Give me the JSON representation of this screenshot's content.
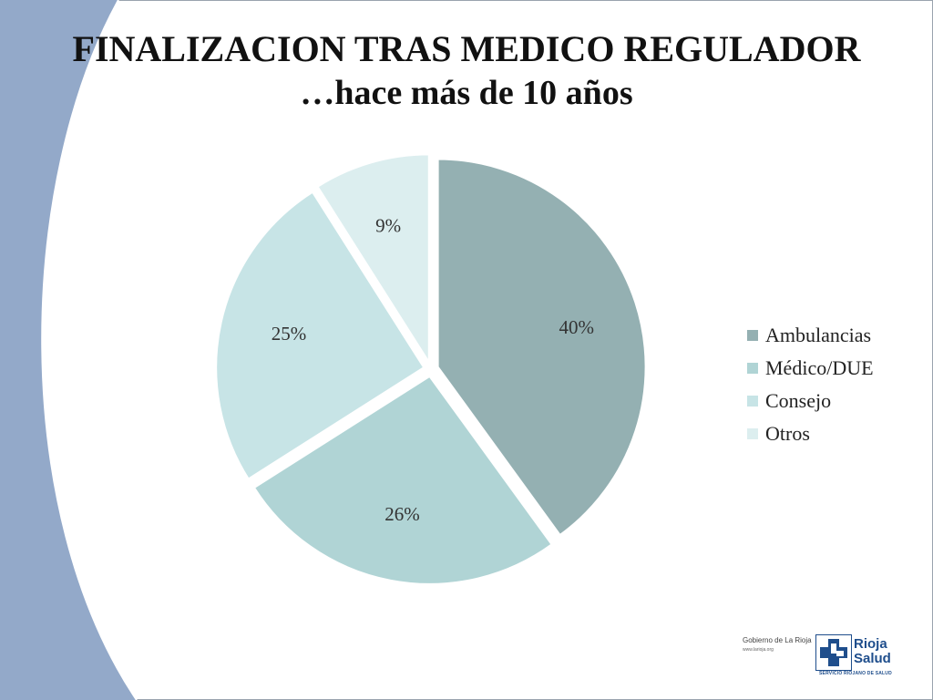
{
  "slide": {
    "title_line1": "FINALIZACION TRAS MEDICO REGULADOR",
    "title_line2": "…hace más de 10 años"
  },
  "chart_data": {
    "type": "pie",
    "title": "",
    "categories": [
      "Ambulancias",
      "Médico/DUE",
      "Consejo",
      "Otros"
    ],
    "values": [
      40,
      26,
      25,
      9
    ],
    "labels": [
      "40%",
      "26%",
      "25%",
      "9%"
    ],
    "colors": [
      "#94b0b2",
      "#b0d4d5",
      "#c7e4e6",
      "#dceeef"
    ],
    "legend": "right",
    "exploded": true
  },
  "logos": {
    "gobierno": "Gobierno de La Rioja",
    "gobierno_web": "www.larioja.org",
    "rioja_salud_line1": "Rioja",
    "rioja_salud_line2": "Salud",
    "rioja_salud_sub": "SERVICIO RIOJANO DE SALUD"
  }
}
